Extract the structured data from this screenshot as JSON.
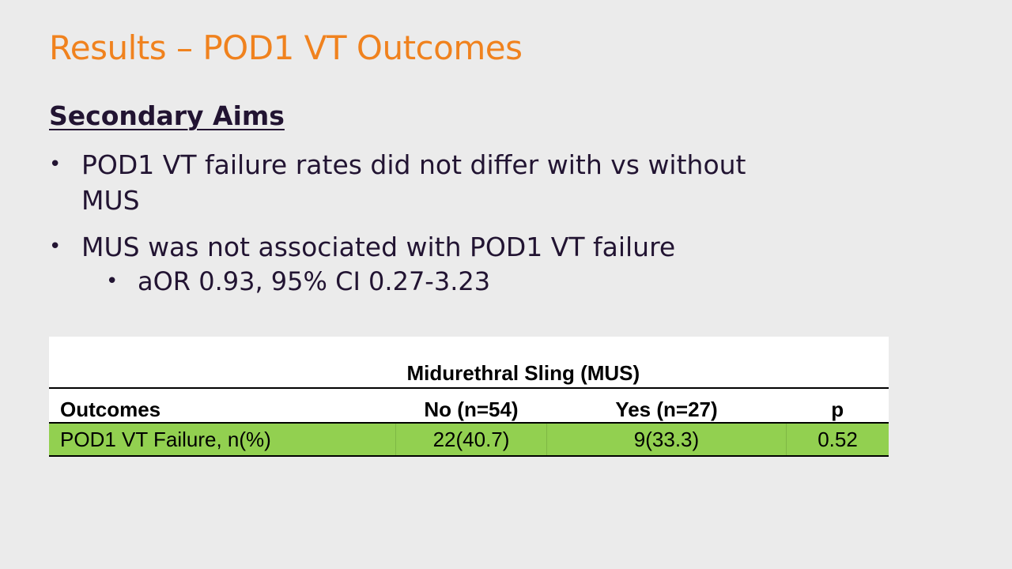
{
  "slide": {
    "title": "Results – POD1 VT Outcomes",
    "section_heading": "Secondary Aims",
    "bullets": [
      {
        "text": "POD1 VT failure rates did not differ with vs without MUS"
      },
      {
        "text": "MUS was not associated with POD1 VT failure"
      }
    ],
    "sub_bullets": [
      {
        "text": "aOR 0.93, 95% CI 0.27-3.23"
      }
    ],
    "bullet_glyph": "•"
  },
  "table": {
    "group_header": "Midurethral Sling (MUS)",
    "columns": [
      "Outcomes",
      "No (n=54)",
      "Yes (n=27)",
      "p"
    ],
    "rows": [
      {
        "cells": [
          "POD1 VT Failure, n(%)",
          "22(40.7)",
          "9(33.3)",
          "0.52"
        ]
      }
    ],
    "highlight_color": "#92d050"
  },
  "colors": {
    "title": "#f0821e",
    "body_text": "#221432",
    "background": "#ebebeb"
  }
}
